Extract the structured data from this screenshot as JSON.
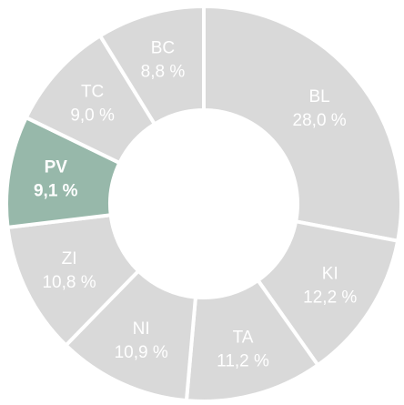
{
  "chart_data": {
    "type": "donut",
    "categories": [
      "BL",
      "KI",
      "TA",
      "NI",
      "ZI",
      "PV",
      "TC",
      "BC"
    ],
    "values": [
      28.0,
      12.2,
      11.2,
      10.9,
      10.8,
      9.1,
      9.0,
      8.8
    ],
    "value_labels": [
      "28,0 %",
      "12,2 %",
      "11,2 %",
      "10,9 %",
      "10,8 %",
      "9,1 %",
      "9,0 %",
      "8,8 %"
    ],
    "colors": [
      "#d9d9d9",
      "#d9d9d9",
      "#d9d9d9",
      "#d9d9d9",
      "#d9d9d9",
      "#97b8aa",
      "#d9d9d9",
      "#d9d9d9"
    ],
    "highlight": "PV"
  }
}
